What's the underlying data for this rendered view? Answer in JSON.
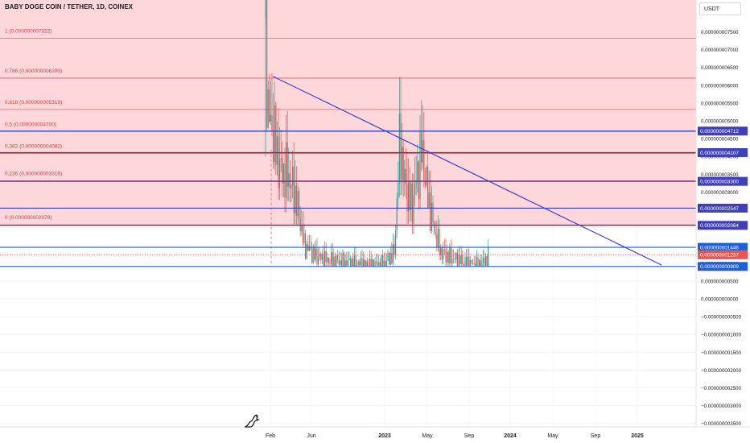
{
  "chart_data": {
    "type": "candlestick",
    "title": "BABY DOGE COIN / TETHER, 1D, COINEX",
    "currency": "USDT",
    "price_labels": [
      "0.000000007500",
      "0.000000007000",
      "0.000000006500",
      "0.000000006000",
      "0.000000005500",
      "0.000000005000",
      "0.000000004500",
      "0.000000004000",
      "0.000000003500",
      "0.000000003000",
      "0.000000002500",
      "0.000000002000",
      "0.000000001500",
      "0.000000001000",
      "0.000000000500",
      "0.000000000000",
      "−0.000000000500",
      "−0.000000001000",
      "−0.000000001500",
      "−0.000000002000",
      "−0.000000002500",
      "−0.000000003000",
      "−0.000000003500"
    ],
    "time_labels": [
      "Feb",
      "Jun",
      "2023",
      "May",
      "Sep",
      "2024",
      "May",
      "Sep",
      "2025"
    ],
    "fib_levels": [
      {
        "label": "1 (0.000000007322)"
      },
      {
        "label": "0.786 (0.000000006200)"
      },
      {
        "label": "0.618 (0.000000005319)"
      },
      {
        "label": "0.5 (0.000000004700)"
      },
      {
        "label": "0.382 (0.000000004082)"
      },
      {
        "label": "0.236 (0.000000003316)"
      },
      {
        "label": "0 (0.000000002078)"
      }
    ],
    "horizontal_lines": [
      {
        "price": "0.000000004712",
        "color": "#3f3fb8"
      },
      {
        "price": "0.000000004107",
        "color": "#3f3fb8"
      },
      {
        "price": "0.000000003300",
        "color": "#3f3fb8"
      },
      {
        "price": "0.000000002547",
        "color": "#3f3fb8"
      },
      {
        "price": "0.000000002064",
        "color": "#3f3fb8"
      },
      {
        "price": "0.000000001446",
        "color": "#1e5fd6"
      },
      {
        "price": "0.000000000909",
        "color": "#1e5fd6"
      }
    ],
    "current_price": "0.000000001237",
    "colors": {
      "up": "#26a69a",
      "down": "#ef5350",
      "fib_zone": "#fdd7d9",
      "fib_line": "#e06666",
      "trendline": "#3f3fd0",
      "blue_line": "#1e5fd6"
    }
  }
}
